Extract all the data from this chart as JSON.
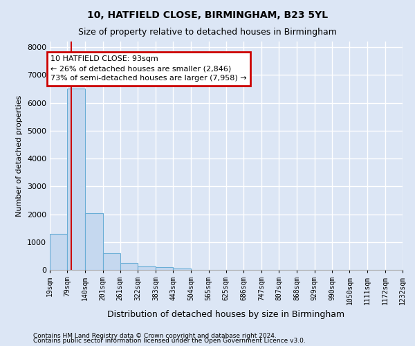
{
  "title": "10, HATFIELD CLOSE, BIRMINGHAM, B23 5YL",
  "subtitle": "Size of property relative to detached houses in Birmingham",
  "xlabel": "Distribution of detached houses by size in Birmingham",
  "ylabel": "Number of detached properties",
  "footnote1": "Contains HM Land Registry data © Crown copyright and database right 2024.",
  "footnote2": "Contains public sector information licensed under the Open Government Licence v3.0.",
  "bin_edges": [
    19,
    79,
    140,
    201,
    261,
    322,
    383,
    443,
    504,
    565,
    625,
    686,
    747,
    807,
    868,
    929,
    990,
    1050,
    1111,
    1172,
    1232
  ],
  "bar_heights": [
    1300,
    6500,
    2050,
    600,
    250,
    130,
    100,
    60,
    10,
    5,
    5,
    5,
    2,
    2,
    1,
    1,
    1,
    1,
    1,
    1
  ],
  "bar_color": "#c5d8ef",
  "bar_edge_color": "#6aaed6",
  "background_color": "#dce6f5",
  "grid_color": "#ffffff",
  "ylim": [
    0,
    8200
  ],
  "yticks": [
    0,
    1000,
    2000,
    3000,
    4000,
    5000,
    6000,
    7000,
    8000
  ],
  "property_size": 93,
  "annotation_line1": "10 HATFIELD CLOSE: 93sqm",
  "annotation_line2": "← 26% of detached houses are smaller (2,846)",
  "annotation_line3": "73% of semi-detached houses are larger (7,958) →",
  "red_line_color": "#cc0000",
  "annotation_box_edge_color": "#cc0000",
  "title_fontsize": 10,
  "subtitle_fontsize": 9
}
